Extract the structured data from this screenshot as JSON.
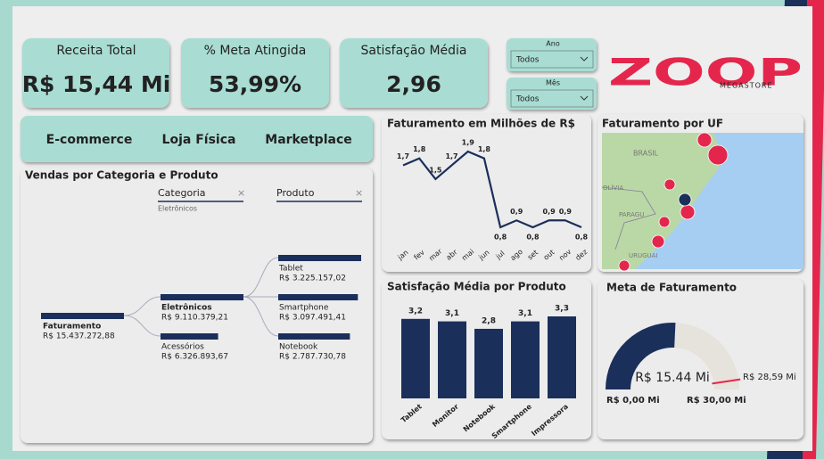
{
  "kpis": [
    {
      "label": "Receita Total",
      "value": "R$ 15,44 Mi"
    },
    {
      "label": "% Meta Atingida",
      "value": "53,99%"
    },
    {
      "label": "Satisfação Média",
      "value": "2,96"
    }
  ],
  "filters": [
    {
      "label": "Ano",
      "value": "Todos"
    },
    {
      "label": "Mês",
      "value": "Todos"
    }
  ],
  "logo": {
    "text": "ZOOP",
    "sub": "MEGASTORE"
  },
  "channels": [
    "E-commerce",
    "Loja Física",
    "Marketplace"
  ],
  "tree": {
    "title": "Vendas por Categoria e Produto",
    "columns": [
      {
        "label": "Categoria",
        "filter": "Eletrônicos"
      },
      {
        "label": "Produto"
      }
    ],
    "root": {
      "name": "Faturamento",
      "value": 15437272.88,
      "label": "R$ 15.437.272,88"
    },
    "categories": [
      {
        "name": "Eletrônicos",
        "value": 9110379.21,
        "label": "R$ 9.110.379,21"
      },
      {
        "name": "Acessórios",
        "value": 6326893.67,
        "label": "R$ 6.326.893,67"
      }
    ],
    "products": [
      {
        "name": "Tablet",
        "value": 3225157.02,
        "label": "R$ 3.225.157,02"
      },
      {
        "name": "Smartphone",
        "value": 3097491.41,
        "label": "R$ 3.097.491,41"
      },
      {
        "name": "Notebook",
        "value": 2787730.78,
        "label": "R$ 2.787.730,78"
      }
    ]
  },
  "line_chart": {
    "type": "line",
    "title": "Faturamento em Milhões de R$",
    "color": "#1b2f5b",
    "categories": [
      "jan",
      "fev",
      "mar",
      "abr",
      "mai",
      "jun",
      "jul",
      "ago",
      "set",
      "out",
      "nov",
      "dez"
    ],
    "values": [
      1.7,
      1.8,
      1.5,
      1.7,
      1.9,
      1.8,
      0.8,
      0.9,
      0.8,
      0.9,
      0.9,
      0.8
    ],
    "value_labels": [
      "1,7",
      "1,8",
      "1,5",
      "1,7",
      "1,9",
      "1,8",
      "0,8",
      "0,9",
      "0,8",
      "0,9",
      "0,9",
      "0,8"
    ]
  },
  "bar_chart": {
    "type": "bar",
    "title": "Satisfação Média por Produto",
    "color": "#1b2f5b",
    "categories": [
      "Tablet",
      "Monitor",
      "Notebook",
      "Smartphone",
      "Impressora"
    ],
    "values": [
      3.2,
      3.1,
      2.8,
      3.1,
      3.3
    ],
    "value_labels": [
      "3,2",
      "3,1",
      "2,8",
      "3,1",
      "3,3"
    ]
  },
  "map": {
    "title": "Faturamento por UF",
    "labels": [
      "BRASIL",
      "OLÍVIA",
      "PARAGU",
      "URUGUAI"
    ]
  },
  "gauge": {
    "title": "Meta de Faturamento",
    "value": 15.44,
    "value_label": "R$ 15.44 Mi",
    "min": 0,
    "min_label": "R$ 0,00 Mi",
    "max": 30,
    "max_label": "R$ 30,00 Mi",
    "target": 28.59,
    "target_label": "R$ 28,59 Mi"
  }
}
